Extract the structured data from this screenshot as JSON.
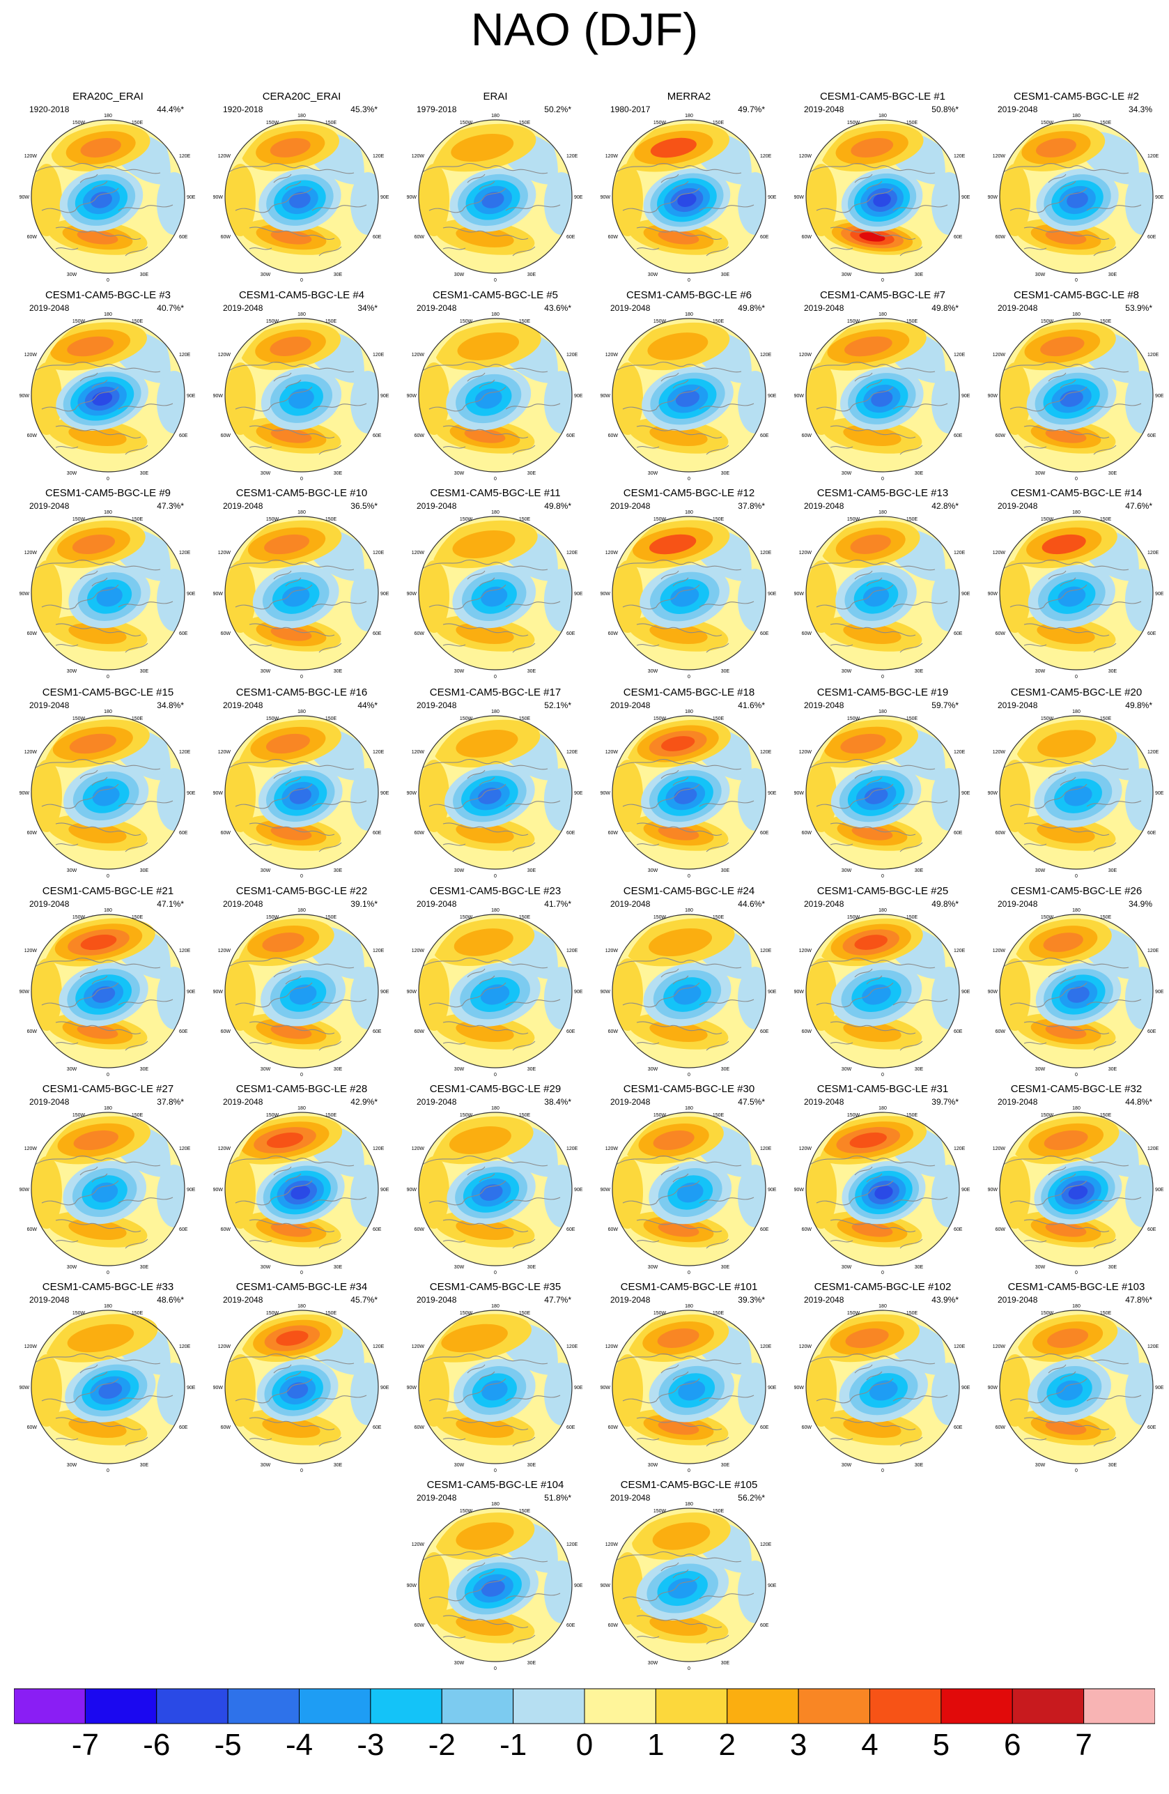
{
  "title": "NAO (DJF)",
  "colors": {
    "levels": [
      "#8a1ef4",
      "#1b08f0",
      "#2a4ae6",
      "#2e72ea",
      "#1e9df4",
      "#14c3f8",
      "#7ccbf0",
      "#b6dff2",
      "#fff59a",
      "#fcd83c",
      "#fbae10",
      "#f98624",
      "#f75316",
      "#e10a0a",
      "#c81a1e",
      "#f8b4b4"
    ],
    "coast": "#8a8a8a",
    "rim": "#333333"
  },
  "colorbar": {
    "labels": [
      "-7",
      "-6",
      "-5",
      "-4",
      "-3",
      "-2",
      "-1",
      "0",
      "1",
      "2",
      "3",
      "4",
      "5",
      "6",
      "7"
    ]
  },
  "map_labels": {
    "top": "180",
    "upper_left": "120W",
    "upper_left2": "150W",
    "upper_right2": "150E",
    "upper_right": "120E",
    "left": "90W",
    "right": "90E",
    "lower_left": "60W",
    "lower_right": "60E",
    "bottom_left": "30W",
    "bottom_right": "30E",
    "bottom": "0"
  },
  "panels": [
    {
      "title": "ERA20C_ERAI",
      "period": "1920-2018",
      "pct": "44.4%*"
    },
    {
      "title": "CERA20C_ERAI",
      "period": "1920-2018",
      "pct": "45.3%*"
    },
    {
      "title": "ERAI",
      "period": "1979-2018",
      "pct": "50.2%*"
    },
    {
      "title": "MERRA2",
      "period": "1980-2017",
      "pct": "49.7%*"
    },
    {
      "title": "CESM1-CAM5-BGC-LE #1",
      "period": "2019-2048",
      "pct": "50.8%*"
    },
    {
      "title": "CESM1-CAM5-BGC-LE #2",
      "period": "2019-2048",
      "pct": "34.3%"
    },
    {
      "title": "CESM1-CAM5-BGC-LE #3",
      "period": "2019-2048",
      "pct": "40.7%*"
    },
    {
      "title": "CESM1-CAM5-BGC-LE #4",
      "period": "2019-2048",
      "pct": "34%*"
    },
    {
      "title": "CESM1-CAM5-BGC-LE #5",
      "period": "2019-2048",
      "pct": "43.6%*"
    },
    {
      "title": "CESM1-CAM5-BGC-LE #6",
      "period": "2019-2048",
      "pct": "49.8%*"
    },
    {
      "title": "CESM1-CAM5-BGC-LE #7",
      "period": "2019-2048",
      "pct": "49.8%*"
    },
    {
      "title": "CESM1-CAM5-BGC-LE #8",
      "period": "2019-2048",
      "pct": "53.9%*"
    },
    {
      "title": "CESM1-CAM5-BGC-LE #9",
      "period": "2019-2048",
      "pct": "47.3%*"
    },
    {
      "title": "CESM1-CAM5-BGC-LE #10",
      "period": "2019-2048",
      "pct": "36.5%*"
    },
    {
      "title": "CESM1-CAM5-BGC-LE #11",
      "period": "2019-2048",
      "pct": "49.8%*"
    },
    {
      "title": "CESM1-CAM5-BGC-LE #12",
      "period": "2019-2048",
      "pct": "37.8%*"
    },
    {
      "title": "CESM1-CAM5-BGC-LE #13",
      "period": "2019-2048",
      "pct": "42.8%*"
    },
    {
      "title": "CESM1-CAM5-BGC-LE #14",
      "period": "2019-2048",
      "pct": "47.6%*"
    },
    {
      "title": "CESM1-CAM5-BGC-LE #15",
      "period": "2019-2048",
      "pct": "34.8%*"
    },
    {
      "title": "CESM1-CAM5-BGC-LE #16",
      "period": "2019-2048",
      "pct": "44%*"
    },
    {
      "title": "CESM1-CAM5-BGC-LE #17",
      "period": "2019-2048",
      "pct": "52.1%*"
    },
    {
      "title": "CESM1-CAM5-BGC-LE #18",
      "period": "2019-2048",
      "pct": "41.6%*"
    },
    {
      "title": "CESM1-CAM5-BGC-LE #19",
      "period": "2019-2048",
      "pct": "59.7%*"
    },
    {
      "title": "CESM1-CAM5-BGC-LE #20",
      "period": "2019-2048",
      "pct": "49.8%*"
    },
    {
      "title": "CESM1-CAM5-BGC-LE #21",
      "period": "2019-2048",
      "pct": "47.1%*"
    },
    {
      "title": "CESM1-CAM5-BGC-LE #22",
      "period": "2019-2048",
      "pct": "39.1%*"
    },
    {
      "title": "CESM1-CAM5-BGC-LE #23",
      "period": "2019-2048",
      "pct": "41.7%*"
    },
    {
      "title": "CESM1-CAM5-BGC-LE #24",
      "period": "2019-2048",
      "pct": "44.6%*"
    },
    {
      "title": "CESM1-CAM5-BGC-LE #25",
      "period": "2019-2048",
      "pct": "49.8%*"
    },
    {
      "title": "CESM1-CAM5-BGC-LE #26",
      "period": "2019-2048",
      "pct": "34.9%"
    },
    {
      "title": "CESM1-CAM5-BGC-LE #27",
      "period": "2019-2048",
      "pct": "37.8%*"
    },
    {
      "title": "CESM1-CAM5-BGC-LE #28",
      "period": "2019-2048",
      "pct": "42.9%*"
    },
    {
      "title": "CESM1-CAM5-BGC-LE #29",
      "period": "2019-2048",
      "pct": "38.4%*"
    },
    {
      "title": "CESM1-CAM5-BGC-LE #30",
      "period": "2019-2048",
      "pct": "47.5%*"
    },
    {
      "title": "CESM1-CAM5-BGC-LE #31",
      "period": "2019-2048",
      "pct": "39.7%*"
    },
    {
      "title": "CESM1-CAM5-BGC-LE #32",
      "period": "2019-2048",
      "pct": "44.8%*"
    },
    {
      "title": "CESM1-CAM5-BGC-LE #33",
      "period": "2019-2048",
      "pct": "48.6%*"
    },
    {
      "title": "CESM1-CAM5-BGC-LE #34",
      "period": "2019-2048",
      "pct": "45.7%*"
    },
    {
      "title": "CESM1-CAM5-BGC-LE #35",
      "period": "2019-2048",
      "pct": "47.7%*"
    },
    {
      "title": "CESM1-CAM5-BGC-LE #101",
      "period": "2019-2048",
      "pct": "39.3%*"
    },
    {
      "title": "CESM1-CAM5-BGC-LE #102",
      "period": "2019-2048",
      "pct": "43.9%*"
    },
    {
      "title": "CESM1-CAM5-BGC-LE #103",
      "period": "2019-2048",
      "pct": "47.8%*"
    },
    {
      "title": "CESM1-CAM5-BGC-LE #104",
      "period": "2019-2048",
      "pct": "51.8%*"
    },
    {
      "title": "CESM1-CAM5-BGC-LE #105",
      "period": "2019-2048",
      "pct": "56.2%*"
    }
  ]
}
